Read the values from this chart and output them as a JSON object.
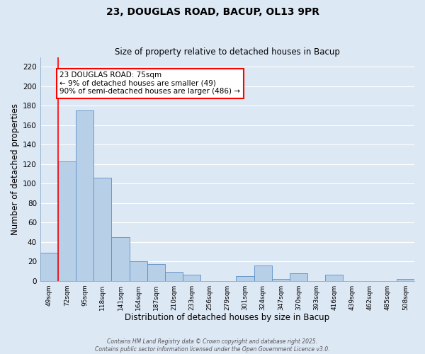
{
  "title": "23, DOUGLAS ROAD, BACUP, OL13 9PR",
  "subtitle": "Size of property relative to detached houses in Bacup",
  "xlabel": "Distribution of detached houses by size in Bacup",
  "ylabel": "Number of detached properties",
  "bar_labels": [
    "49sqm",
    "72sqm",
    "95sqm",
    "118sqm",
    "141sqm",
    "164sqm",
    "187sqm",
    "210sqm",
    "233sqm",
    "256sqm",
    "279sqm",
    "301sqm",
    "324sqm",
    "347sqm",
    "370sqm",
    "393sqm",
    "416sqm",
    "439sqm",
    "462sqm",
    "485sqm",
    "508sqm"
  ],
  "bar_values": [
    29,
    123,
    175,
    106,
    45,
    20,
    17,
    9,
    6,
    0,
    0,
    5,
    16,
    2,
    8,
    0,
    6,
    0,
    0,
    0,
    2
  ],
  "bar_color": "#b8cfe8",
  "bar_edge_color": "#5b8ec4",
  "ylim": [
    0,
    230
  ],
  "yticks": [
    0,
    20,
    40,
    60,
    80,
    100,
    120,
    140,
    160,
    180,
    200,
    220
  ],
  "background_color": "#dde8f5",
  "grid_color": "#ffffff",
  "annotation_title": "23 DOUGLAS ROAD: 75sqm",
  "annotation_line1": "← 9% of detached houses are smaller (49)",
  "annotation_line2": "90% of semi-detached houses are larger (486) →",
  "footnote1": "Contains HM Land Registry data © Crown copyright and database right 2025.",
  "footnote2": "Contains public sector information licensed under the Open Government Licence v3.0."
}
